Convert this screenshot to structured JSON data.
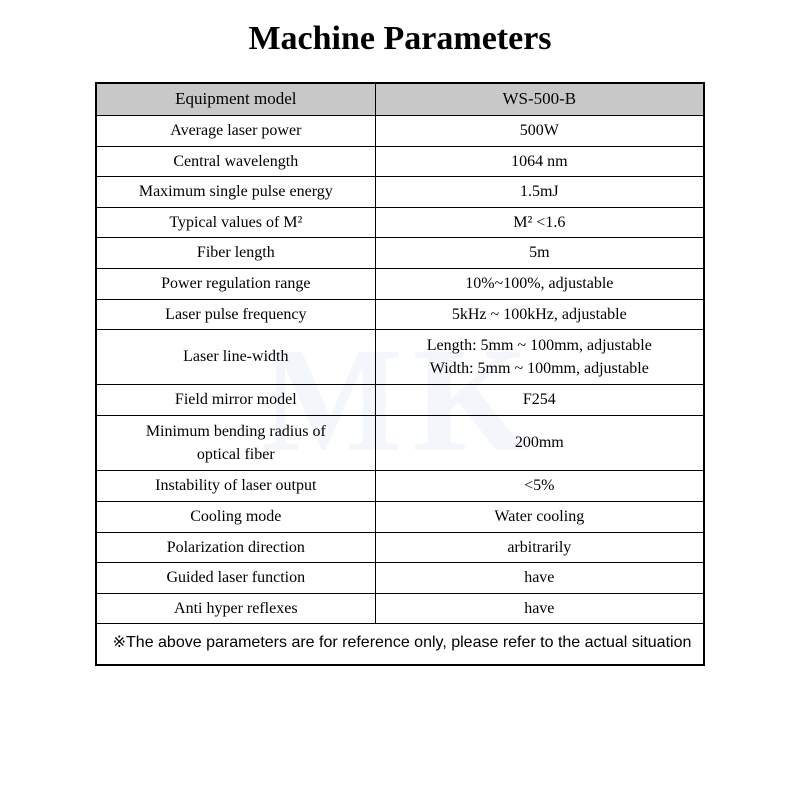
{
  "title": "Machine Parameters",
  "watermark_text": "MK",
  "table": {
    "header_bg": "#c8c8c8",
    "border_color": "#000000",
    "header": {
      "left": "Equipment model",
      "right": "WS-500-B"
    },
    "rows": [
      {
        "left": "Average laser power",
        "right": "500W"
      },
      {
        "left": "Central wavelength",
        "right": "1064 nm"
      },
      {
        "left": "Maximum single pulse energy",
        "right": "1.5mJ"
      },
      {
        "left": "Typical values of M²",
        "right": "M² <1.6"
      },
      {
        "left": "Fiber length",
        "right": "5m"
      },
      {
        "left": "Power regulation range",
        "right": "10%~100%, adjustable"
      },
      {
        "left": "Laser pulse frequency",
        "right": "5kHz ~ 100kHz, adjustable"
      },
      {
        "left": "Laser line-width",
        "right_line1": "Length: 5mm ~ 100mm, adjustable",
        "right_line2": "Width: 5mm ~ 100mm, adjustable",
        "multiline": true
      },
      {
        "left": "Field mirror model",
        "right": "F254"
      },
      {
        "left_line1": "Minimum bending radius of",
        "left_line2": "optical fiber",
        "right": "200mm",
        "left_multiline": true
      },
      {
        "left": "Instability of laser output",
        "right": "<5%"
      },
      {
        "left": "Cooling mode",
        "right": "Water cooling"
      },
      {
        "left": "Polarization direction",
        "right": "arbitrarily"
      },
      {
        "left": "Guided laser function",
        "right": "have"
      },
      {
        "left": "Anti hyper reflexes",
        "right": "have"
      }
    ],
    "footnote": "※The above parameters are for reference only, please refer to the actual situation"
  }
}
